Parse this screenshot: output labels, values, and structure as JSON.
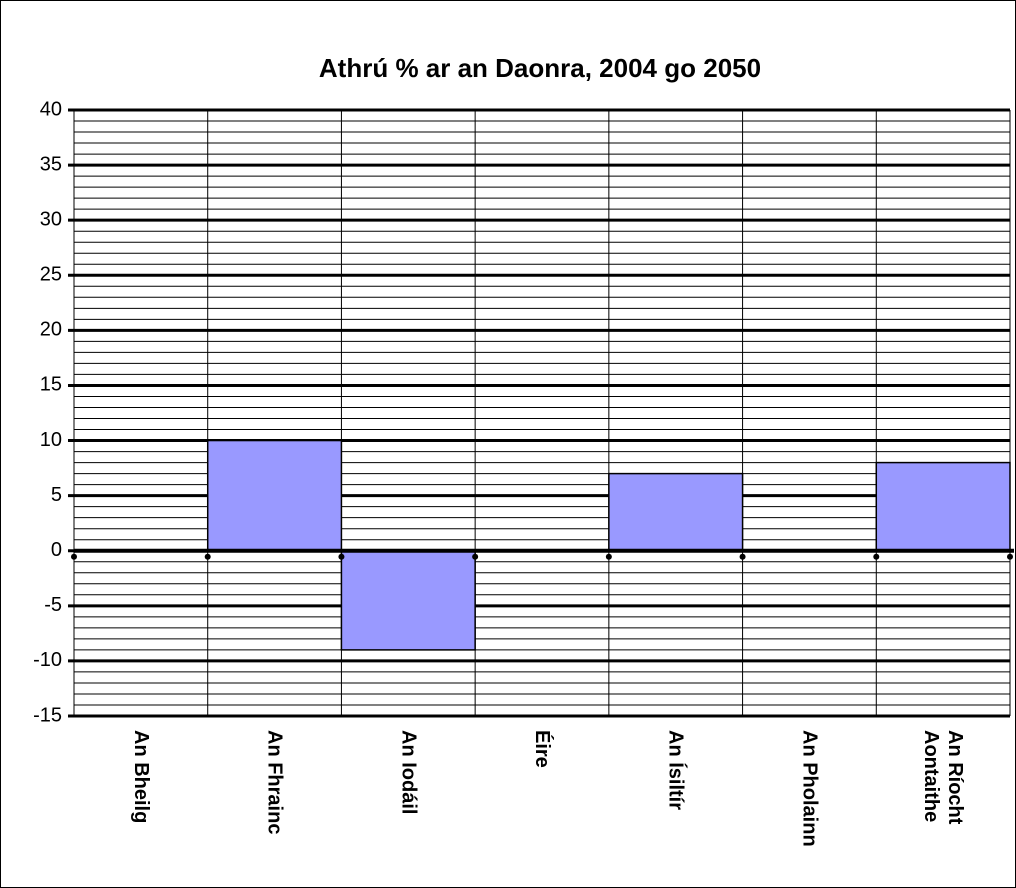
{
  "chart_data": {
    "type": "bar",
    "title": "Athrú % ar an Daonra, 2004 go 2050",
    "categories": [
      "An Bheilg",
      "An Fhrainc",
      "An Iodáil",
      "Éire",
      "An Ísiltír",
      "An Pholainn",
      "An Ríocht Aontaithe"
    ],
    "values": [
      0,
      10,
      -9,
      0,
      7,
      0,
      8
    ],
    "color": "#9999ff",
    "ylim": [
      -15,
      40
    ],
    "yticks": [
      -15,
      -10,
      -5,
      0,
      5,
      10,
      15,
      20,
      25,
      30,
      35,
      40
    ],
    "grid": true,
    "minor_grid": true
  }
}
